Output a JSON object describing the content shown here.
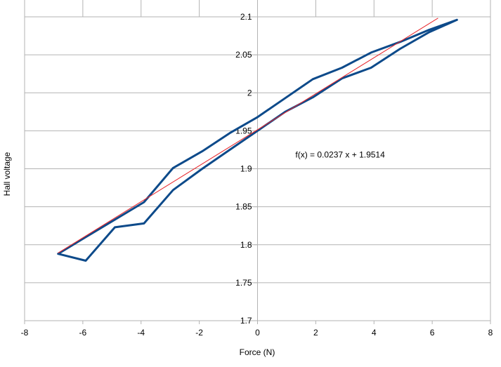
{
  "chart_data": {
    "type": "line",
    "xlabel": "Force (N)",
    "ylabel": "Hall voltage",
    "xlim": [
      -8,
      8
    ],
    "ylim": [
      1.7,
      2.1
    ],
    "x_ticks": [
      "-8",
      "-6",
      "-4",
      "-2",
      "0",
      "2",
      "4",
      "6",
      "8"
    ],
    "y_ticks": [
      "1.7",
      "1.75",
      "1.8",
      "1.85",
      "1.9",
      "1.95",
      "2",
      "2.05",
      "2.1"
    ],
    "grid": true,
    "legend": "none",
    "series": [
      {
        "color": "#0d4a8a",
        "points": [
          [
            6.85,
            2.096
          ],
          [
            5.9,
            2.08
          ],
          [
            4.9,
            2.058
          ],
          [
            3.9,
            2.033
          ],
          [
            2.9,
            2.019
          ],
          [
            1.9,
            1.994
          ],
          [
            0.95,
            1.975
          ],
          [
            0.0,
            1.95
          ],
          [
            -0.95,
            1.925
          ],
          [
            -1.9,
            1.9
          ],
          [
            -2.9,
            1.872
          ],
          [
            -3.9,
            1.828
          ],
          [
            -4.9,
            1.823
          ],
          [
            -5.9,
            1.779
          ],
          [
            -6.85,
            1.788
          ],
          [
            -5.9,
            1.81
          ],
          [
            -4.9,
            1.833
          ],
          [
            -3.9,
            1.856
          ],
          [
            -2.9,
            1.901
          ],
          [
            -1.9,
            1.923
          ],
          [
            -0.95,
            1.947
          ],
          [
            0.0,
            1.968
          ],
          [
            0.95,
            1.993
          ],
          [
            1.9,
            2.018
          ],
          [
            2.9,
            2.033
          ],
          [
            3.9,
            2.053
          ],
          [
            4.9,
            2.067
          ],
          [
            5.9,
            2.083
          ],
          [
            6.85,
            2.096
          ]
        ]
      }
    ],
    "trendline": {
      "slope": 0.0237,
      "intercept": 1.9514,
      "x_range": [
        -6.85,
        6.2
      ],
      "color": "#e8262b"
    },
    "annotations": [
      {
        "text": "f(x) = 0.0237 x + 1.9514",
        "x": 1.3,
        "y": 1.915
      }
    ]
  }
}
